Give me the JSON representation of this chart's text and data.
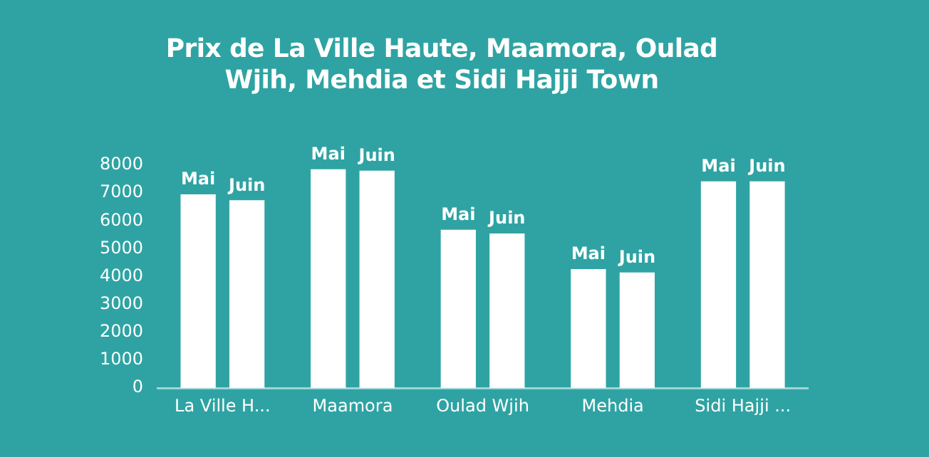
{
  "chart_data": {
    "type": "bar",
    "title": "Prix de La Ville Haute, Maamora, Oulad Wjih, Mehdia et Sidi Hajji Town",
    "categories": [
      "La Ville H...",
      "Maamora",
      "Oulad Wjih",
      "Mehdia",
      "Sidi Hajji ..."
    ],
    "series": [
      {
        "name": "Mai",
        "color": "#ffffff",
        "values": [
          6950,
          7850,
          5680,
          4270,
          7420
        ]
      },
      {
        "name": "Juin",
        "color": "#ffffff",
        "values": [
          6740,
          7800,
          5550,
          4150,
          7420
        ]
      }
    ],
    "ylim": [
      0,
      8000
    ],
    "yticks": [
      0,
      1000,
      2000,
      3000,
      4000,
      5000,
      6000,
      7000,
      8000
    ],
    "grid": false,
    "legend": false
  }
}
